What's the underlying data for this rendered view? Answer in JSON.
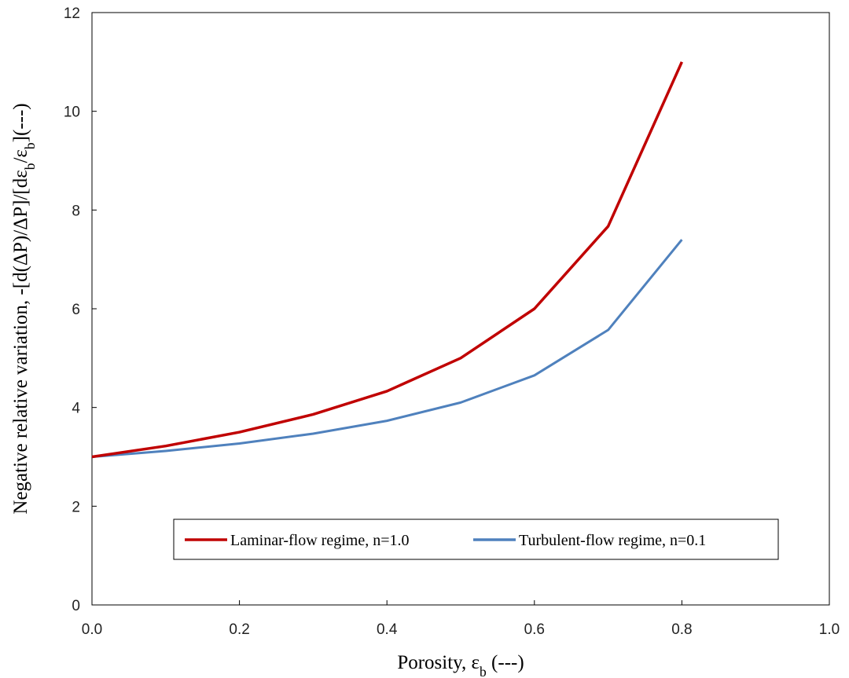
{
  "chart_data": {
    "type": "line",
    "title": "",
    "xlabel": "Porosity, ε_b (---)",
    "ylabel": "Negative relative variation, -[d(ΔP)/ΔP]/[dε_b/ε_b](---)",
    "xlim": [
      0,
      1
    ],
    "ylim": [
      0,
      12
    ],
    "xticks": [
      "0.0",
      "0.2",
      "0.4",
      "0.6",
      "0.8",
      "1.0"
    ],
    "yticks": [
      "0",
      "2",
      "4",
      "6",
      "8",
      "10",
      "12"
    ],
    "grid": false,
    "legend_position": "bottom",
    "series": [
      {
        "name": "Laminar-flow regime, n=1.0",
        "color": "#c00000",
        "x": [
          0,
          0.1,
          0.2,
          0.3,
          0.4,
          0.5,
          0.6,
          0.7,
          0.8
        ],
        "y": [
          3.0,
          3.22,
          3.5,
          3.86,
          4.33,
          5.0,
          6.0,
          7.67,
          11.0
        ]
      },
      {
        "name": "Turbulent-flow regime,  n=0.1",
        "color": "#4f81bd",
        "x": [
          0,
          0.1,
          0.2,
          0.3,
          0.4,
          0.5,
          0.6,
          0.7,
          0.8
        ],
        "y": [
          3.0,
          3.12,
          3.27,
          3.47,
          3.73,
          4.1,
          4.65,
          5.57,
          7.4
        ]
      }
    ]
  }
}
